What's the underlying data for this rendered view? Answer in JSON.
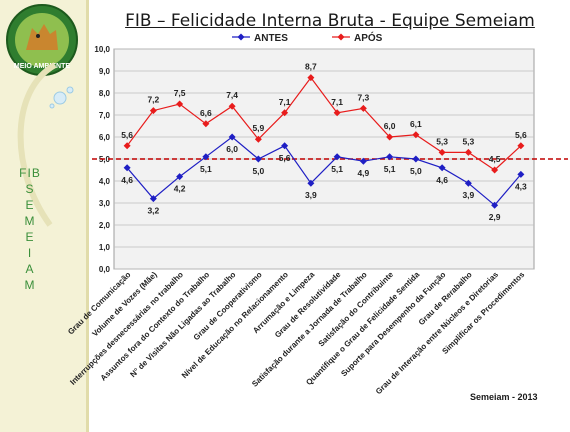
{
  "title": "FIB – Felicidade Interna Bruta - Equipe Semeiam",
  "logo": {
    "text": "MEIO AMBIENTE"
  },
  "sidebar": {
    "letters": [
      "FIB",
      "S",
      "E",
      "M",
      "E",
      "I",
      "A",
      "M"
    ]
  },
  "footer": "Semeiam - 2013",
  "colors": {
    "antes": "#1f1fc4",
    "apos": "#e81c1c",
    "reference": "#c00000",
    "plot_bg": "#f2f2f2",
    "grid": "#bdbdbd",
    "sidebar": "#f4f2d6"
  },
  "chart_data": {
    "type": "line",
    "ylim": [
      0,
      10
    ],
    "yticks": [
      "0,0",
      "1,0",
      "2,0",
      "3,0",
      "4,0",
      "5,0",
      "6,0",
      "7,0",
      "8,0",
      "9,0",
      "10,0"
    ],
    "reference_line": 5.0,
    "legend_position": "top",
    "categories": [
      "Grau de Comunicação",
      "Volume de Vozes (Mãe)",
      "Interrupções desnecessárias no trabalho",
      "Assuntos fora do Contexto do Trabalho",
      "N° de Visitas Não Ligadas ao Trabalho",
      "Grau de Cooperativismo",
      "Nível de Educação no Relacionamento",
      "Arrumação e Limpeza",
      "Grau de Resolutividade",
      "Satisfação durante a Jornada de Trabalho",
      "Satisfação do Contribuinte",
      "Quantifique o Grau de Felicidade Sentida",
      "Suporte para Desempenho da Função",
      "Grau de Rerabalho",
      "Grau de Interação entre Núcleos e Diretorias",
      "Simplificar os Procedimentos"
    ],
    "series": [
      {
        "name": "ANTES",
        "values": [
          4.6,
          3.2,
          4.2,
          5.1,
          6.0,
          5.0,
          5.6,
          3.9,
          5.1,
          4.9,
          5.1,
          5.0,
          4.6,
          3.9,
          2.9,
          4.3
        ],
        "labels": [
          "4,6",
          "3,2",
          "4,2",
          "5,1",
          "6,0",
          "5,0",
          "5,6",
          "3,9",
          "5,1",
          "4,9",
          "5,1",
          "5,0",
          "4,6",
          "3,9",
          "2,9",
          "4,3"
        ]
      },
      {
        "name": "APÓS",
        "values": [
          5.6,
          7.2,
          7.5,
          6.6,
          7.4,
          5.9,
          7.1,
          8.7,
          7.1,
          7.3,
          6.0,
          6.1,
          5.3,
          5.3,
          4.5,
          5.6
        ],
        "labels": [
          "5,6",
          "7,2",
          "7,5",
          "6,6",
          "7,4",
          "5,9",
          "7,1",
          "8,7",
          "7,1",
          "7,3",
          "6,0",
          "6,1",
          "5,3",
          "5,3",
          "4,5",
          "5,6"
        ]
      }
    ]
  }
}
